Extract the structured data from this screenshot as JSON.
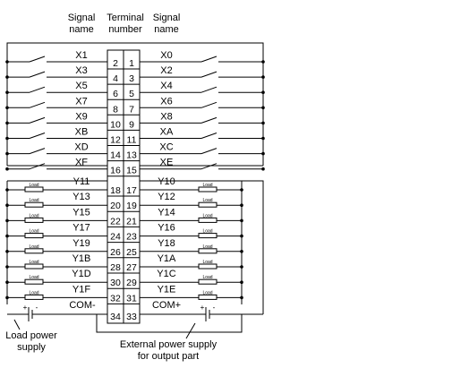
{
  "headers": {
    "signal_name_left": [
      "Signal",
      "name"
    ],
    "terminal_number": [
      "Terminal",
      "number"
    ],
    "signal_name_right": [
      "Signal",
      "name"
    ]
  },
  "input_rows": [
    {
      "left_signal": "X1",
      "left_terminal": "2",
      "right_terminal": "1",
      "right_signal": "X0"
    },
    {
      "left_signal": "X3",
      "left_terminal": "4",
      "right_terminal": "3",
      "right_signal": "X2"
    },
    {
      "left_signal": "X5",
      "left_terminal": "6",
      "right_terminal": "5",
      "right_signal": "X4"
    },
    {
      "left_signal": "X7",
      "left_terminal": "8",
      "right_terminal": "7",
      "right_signal": "X6"
    },
    {
      "left_signal": "X9",
      "left_terminal": "10",
      "right_terminal": "9",
      "right_signal": "X8"
    },
    {
      "left_signal": "XB",
      "left_terminal": "12",
      "right_terminal": "11",
      "right_signal": "XA"
    },
    {
      "left_signal": "XD",
      "left_terminal": "14",
      "right_terminal": "13",
      "right_signal": "XC"
    },
    {
      "left_signal": "XF",
      "left_terminal": "16",
      "right_terminal": "15",
      "right_signal": "XE"
    }
  ],
  "output_rows": [
    {
      "left_signal": "Y11",
      "left_terminal": "18",
      "right_terminal": "17",
      "right_signal": "Y10"
    },
    {
      "left_signal": "Y13",
      "left_terminal": "20",
      "right_terminal": "19",
      "right_signal": "Y12"
    },
    {
      "left_signal": "Y15",
      "left_terminal": "22",
      "right_terminal": "21",
      "right_signal": "Y14"
    },
    {
      "left_signal": "Y17",
      "left_terminal": "24",
      "right_terminal": "23",
      "right_signal": "Y16"
    },
    {
      "left_signal": "Y19",
      "left_terminal": "26",
      "right_terminal": "25",
      "right_signal": "Y18"
    },
    {
      "left_signal": "Y1B",
      "left_terminal": "28",
      "right_terminal": "27",
      "right_signal": "Y1A"
    },
    {
      "left_signal": "Y1D",
      "left_terminal": "30",
      "right_terminal": "29",
      "right_signal": "Y1C"
    },
    {
      "left_signal": "Y1F",
      "left_terminal": "32",
      "right_terminal": "31",
      "right_signal": "Y1E"
    }
  ],
  "common_row": {
    "left_signal": "COM-",
    "left_terminal": "34",
    "right_terminal": "33",
    "right_signal": "COM+"
  },
  "load_label": "Load",
  "battery_plus": "+",
  "battery_minus": "-",
  "annotations": {
    "load_power_supply": [
      "Load power",
      "supply"
    ],
    "external_power_supply": [
      "External power supply",
      "for output part"
    ]
  }
}
